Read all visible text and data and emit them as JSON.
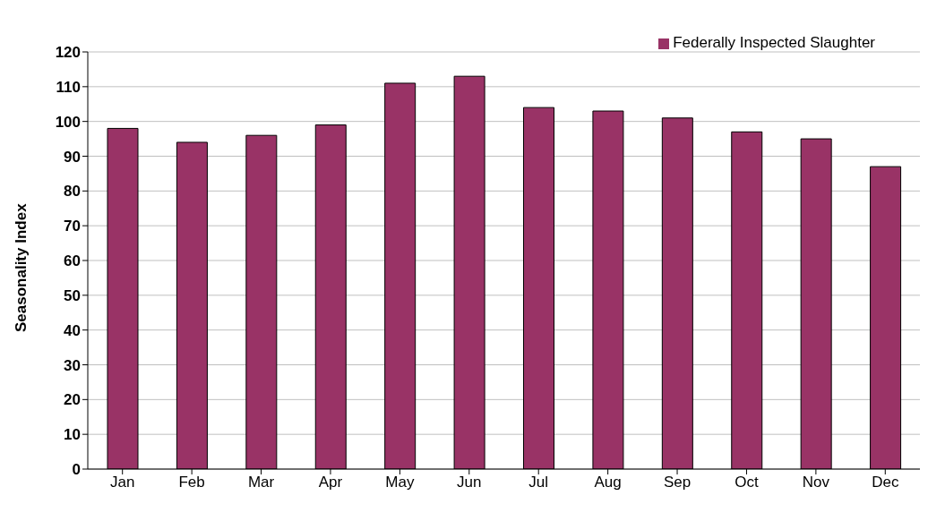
{
  "chart_data": {
    "type": "bar",
    "ylabel": "Seasonality Index",
    "categories": [
      "Jan",
      "Feb",
      "Mar",
      "Apr",
      "May",
      "Jun",
      "Jul",
      "Aug",
      "Sep",
      "Oct",
      "Nov",
      "Dec"
    ],
    "series": [
      {
        "name": "Federally Inspected Slaughter",
        "color": "#993366",
        "values": [
          98,
          94,
          96,
          99,
          111,
          113,
          104,
          103,
          101,
          97,
          95,
          87
        ]
      }
    ],
    "ylim": [
      0,
      120
    ],
    "yticks": [
      0,
      10,
      20,
      30,
      40,
      50,
      60,
      70,
      80,
      90,
      100,
      110,
      120
    ],
    "grid": "y",
    "legend": "top right"
  }
}
